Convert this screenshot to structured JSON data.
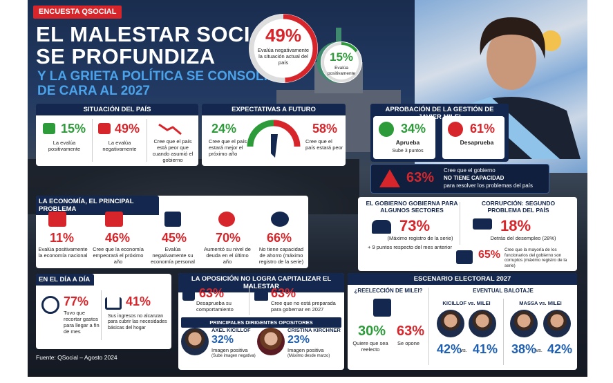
{
  "badge": "ENCUESTA QSOCIAL",
  "title_line1": "EL MALESTAR SOCIAL",
  "title_line2": "SE PROFUNDIZA",
  "subtitle_line1": "Y LA GRIETA POLÍTICA SE CONSOLIDA",
  "subtitle_line2": "DE CARA AL 2027",
  "hero": {
    "negative": {
      "value": 49,
      "label": "49%",
      "text": "Evalúa negativamente la situación actual del país"
    },
    "positive": {
      "value": 15,
      "label": "15%",
      "text": "Evalúa positivamente"
    }
  },
  "situacion": {
    "heading": "SITUACIÓN DEL PAÍS",
    "items": [
      {
        "value": "15%",
        "text": "La evalúa positivamente"
      },
      {
        "value": "49%",
        "text": "La evalúa negativamente"
      },
      {
        "text": "Cree que el país está peor que cuando asumió el gobierno"
      }
    ]
  },
  "expectativas": {
    "heading": "EXPECTATIVAS A FUTURO",
    "better": {
      "value": "24%",
      "text": "Cree que el país estará mejor el próximo año"
    },
    "worse": {
      "value": "58%",
      "text": "Cree que el país estará peor"
    }
  },
  "aprobacion": {
    "heading": "APROBACIÓN DE LA GESTIÓN DE JAVIER MILEI",
    "approve": {
      "value": "34%",
      "label": "Aprueba",
      "note": "Sube 3 puntos"
    },
    "disapprove": {
      "value": "61%",
      "label": "Desaprueba"
    }
  },
  "capacidad": {
    "value": "63%",
    "line1": "Cree que el gobierno",
    "line2": "NO TIENE CAPACIDAD",
    "line3": "para resolver los problemas del país"
  },
  "economia": {
    "heading": "LA ECONOMÍA, EL PRINCIPAL PROBLEMA",
    "items": [
      {
        "value": "11%",
        "text": "Evalúa positivamente la economía nacional"
      },
      {
        "value": "46%",
        "text": "Cree que la economía empeorará el próximo año"
      },
      {
        "value": "45%",
        "text": "Evalúa negativamente su economía personal"
      },
      {
        "value": "70%",
        "text": "Aumentó su nivel de deuda en el último año"
      },
      {
        "value": "66%",
        "text": "No tiene capacidad de ahorro (máximo registro de la serie)"
      }
    ]
  },
  "sectores": {
    "heading": "EL GOBIERNO GOBIERNA PARA ALGUNOS SECTORES",
    "value": "73%",
    "note": "(Máximo registro de la serie)",
    "change": "+ 9 puntos respecto del mes anterior"
  },
  "corrupcion": {
    "heading": "CORRUPCIÓN: SEGUNDO PROBLEMA DEL PAÍS",
    "value": "18%",
    "note": "Detrás del desempleo (28%)",
    "value2": "65%",
    "text2": "Cree que la mayoría de los funcionarios del gobierno son corruptos (máximo registro de la serie)"
  },
  "dia": {
    "heading": "EN EL DÍA A DÍA",
    "items": [
      {
        "value": "77%",
        "text": "Tuvo que recortar gastos para llegar a fin de mes"
      },
      {
        "value": "41%",
        "text": "Sus ingresos no alcanzan para cubrir las necesidades básicas del hogar"
      }
    ]
  },
  "oposicion": {
    "heading": "LA OPOSICIÓN NO LOGRA CAPITALIZAR EL MALESTAR",
    "items": [
      {
        "value": "63%",
        "text": "Desaprueba su comportamiento"
      },
      {
        "value": "63%",
        "text": "Cree que no está preparada para gobernar en 2027"
      }
    ],
    "leaders_heading": "PRINCIPALES DIRIGENTES OPOSITORES",
    "leaders": [
      {
        "name": "AXEL KICILLOF",
        "value": "32%",
        "label": "Imagen positiva",
        "note": "(Sube imagen negativa)"
      },
      {
        "name": "CRISTINA KIRCHNER",
        "value": "23%",
        "label": "Imagen positiva",
        "note": "(Máximo desde marzo)"
      }
    ]
  },
  "escenario": {
    "heading": "ESCENARIO ELECTORAL 2027",
    "question": "¿REELECCIÓN DE MILEI?",
    "yes": {
      "value": "30%",
      "text": "Quiere que sea reelecto"
    },
    "no": {
      "value": "63%",
      "text": "Se opone"
    },
    "ballot_heading": "EVENTUAL BALOTAJE",
    "ballots": [
      {
        "title": "KICILLOF vs. MILEI",
        "a": "42%",
        "b": "41%"
      },
      {
        "title": "MASSA vs. MILEI",
        "a": "38%",
        "b": "42%"
      }
    ],
    "vs": "vs."
  },
  "source": "Fuente: QSocial – Agosto 2024"
}
